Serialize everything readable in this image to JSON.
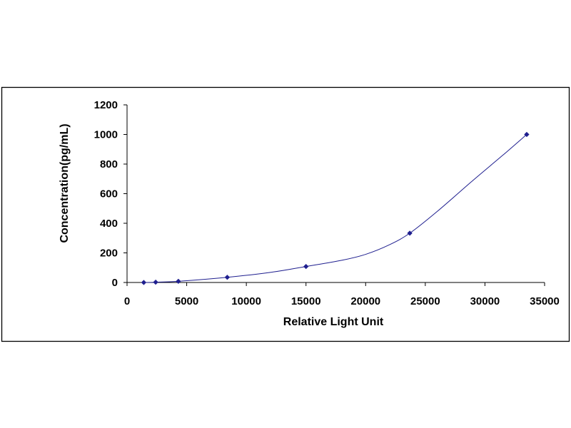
{
  "chart_data": {
    "type": "scatter",
    "title": "",
    "xlabel": "Relative Light Unit",
    "ylabel": "Concentration(pg/mL)",
    "xlim": [
      0,
      35000
    ],
    "ylim": [
      0,
      1200
    ],
    "x_ticks": [
      "0",
      "5000",
      "10000",
      "15000",
      "20000",
      "25000",
      "30000",
      "35000"
    ],
    "y_ticks": [
      "0",
      "200",
      "400",
      "600",
      "800",
      "1000",
      "1200"
    ],
    "grid": false,
    "legend": "none",
    "marker_color": "#1f1f8f",
    "line_color": "#1f1f8f",
    "series": [
      {
        "x": [
          1400,
          2400,
          4300,
          8400,
          15000,
          23700,
          33500
        ],
        "y": [
          0,
          2,
          8,
          35,
          108,
          333,
          1000
        ]
      }
    ],
    "fit_curve": {
      "x": [
        1400,
        2400,
        4300,
        8400,
        12000,
        15000,
        18000,
        20000,
        22000,
        23700,
        26000,
        29000,
        31500,
        33500
      ],
      "y": [
        0,
        2,
        8,
        35,
        68,
        108,
        150,
        190,
        255,
        333,
        480,
        690,
        860,
        1000
      ]
    }
  }
}
